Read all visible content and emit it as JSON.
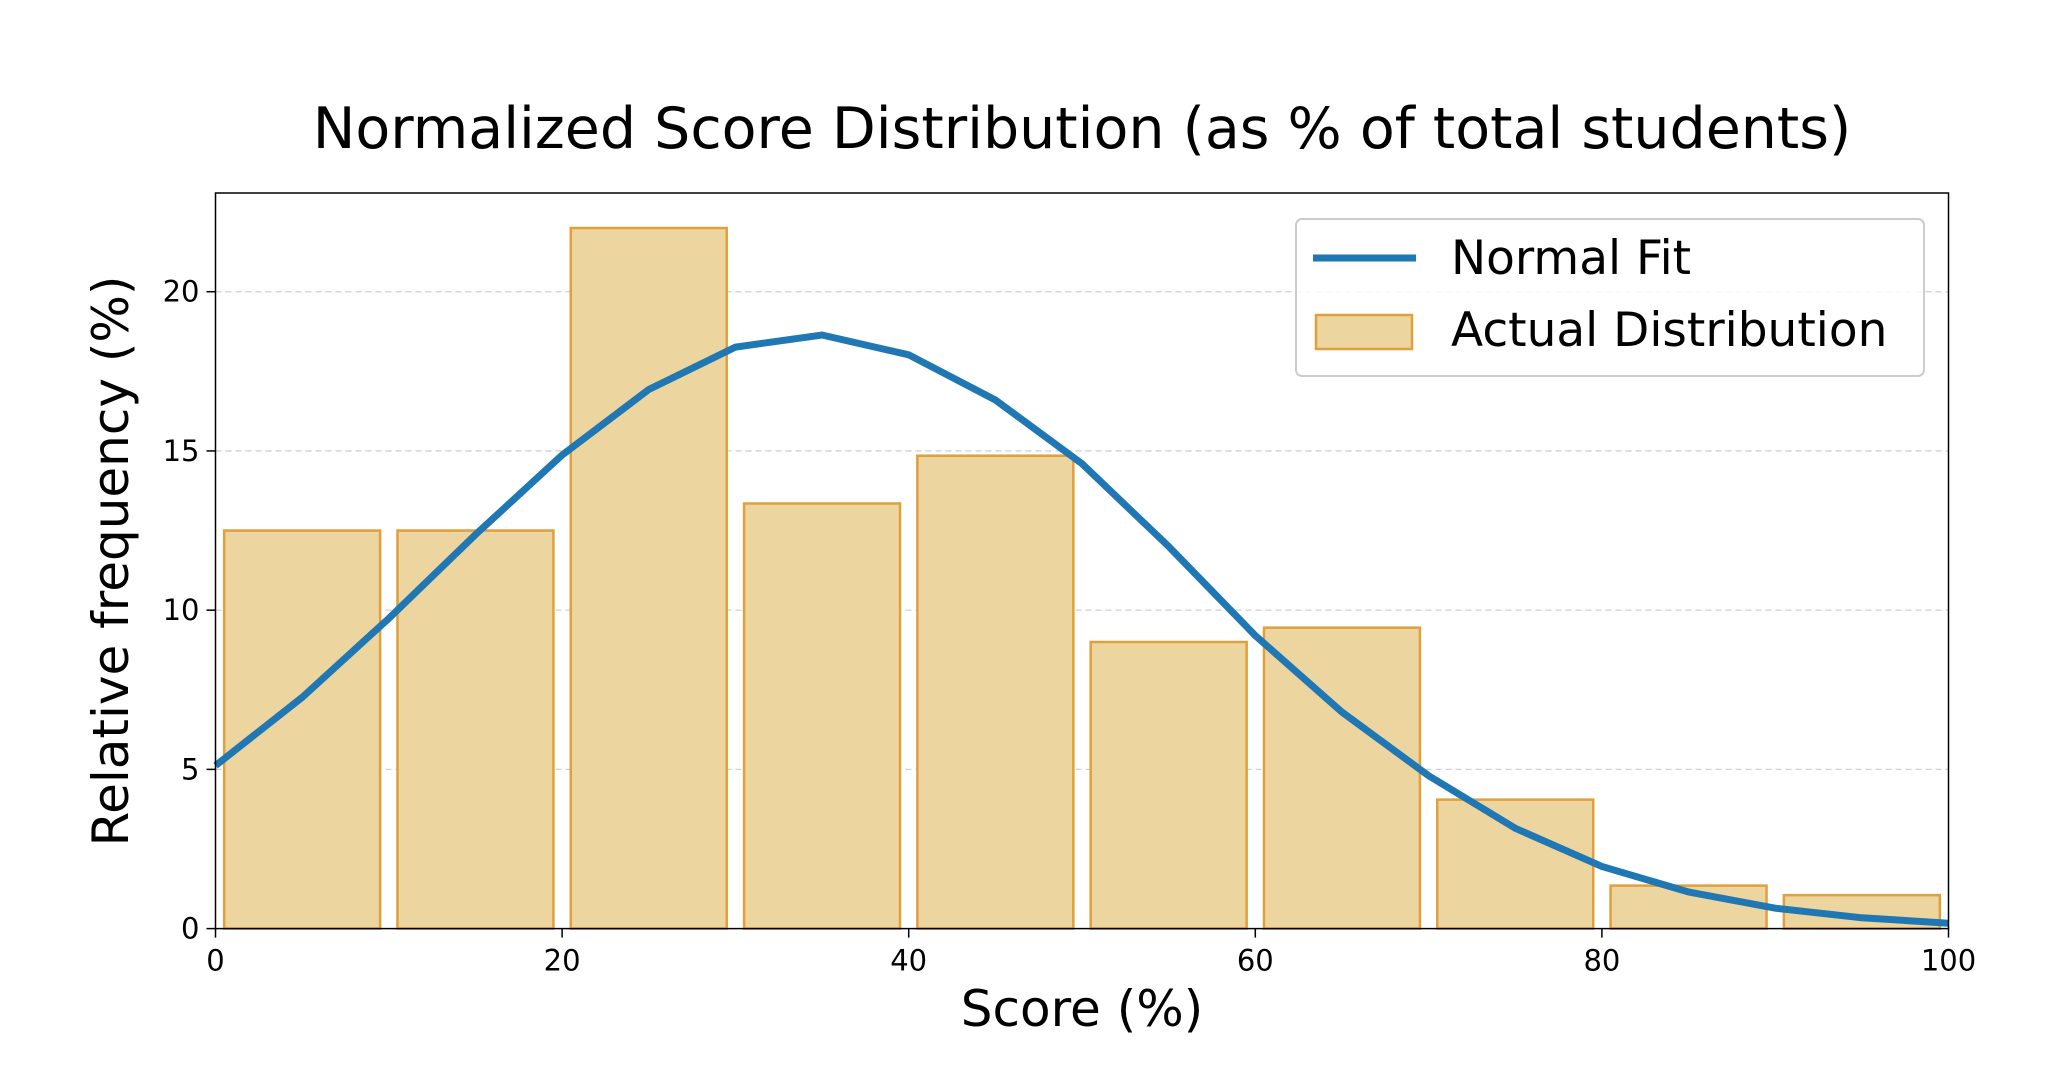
{
  "chart_data": {
    "type": "bar",
    "title": "Normalized Score Distribution (as % of total students)",
    "xlabel": "Score (%)",
    "ylabel": "Relative frequency (%)",
    "xlim": [
      0,
      100
    ],
    "ylim": [
      0,
      23.1
    ],
    "xticks": [
      0,
      20,
      40,
      60,
      80,
      100
    ],
    "yticks": [
      0,
      5,
      10,
      15,
      20
    ],
    "grid": "y dashed",
    "legend": {
      "placement": "top-right",
      "entries": [
        "Normal Fit",
        "Actual Distribution"
      ]
    },
    "colors": {
      "bar_fill": "#ecd59f",
      "bar_edge": "#e0a03c",
      "line": "#1f77b4"
    },
    "series": [
      {
        "name": "Actual Distribution",
        "type": "bar",
        "bins": [
          [
            0,
            10
          ],
          [
            10,
            20
          ],
          [
            20,
            30
          ],
          [
            30,
            40
          ],
          [
            40,
            50
          ],
          [
            50,
            60
          ],
          [
            60,
            70
          ],
          [
            70,
            80
          ],
          [
            80,
            90
          ],
          [
            90,
            100
          ]
        ],
        "values": [
          12.5,
          12.5,
          22.0,
          13.35,
          14.85,
          9.0,
          9.45,
          4.05,
          1.35,
          1.05
        ]
      },
      {
        "name": "Normal Fit",
        "type": "line",
        "x": [
          0,
          5,
          10,
          15,
          20,
          25,
          30,
          35,
          40,
          45,
          50,
          55,
          60,
          65,
          70,
          75,
          80,
          85,
          90,
          95,
          100
        ],
        "y": [
          5.12,
          7.26,
          9.74,
          12.37,
          14.87,
          16.93,
          18.26,
          18.64,
          18.02,
          16.6,
          14.6,
          12.0,
          9.2,
          6.8,
          4.8,
          3.15,
          1.95,
          1.15,
          0.64,
          0.34,
          0.17
        ]
      }
    ]
  }
}
